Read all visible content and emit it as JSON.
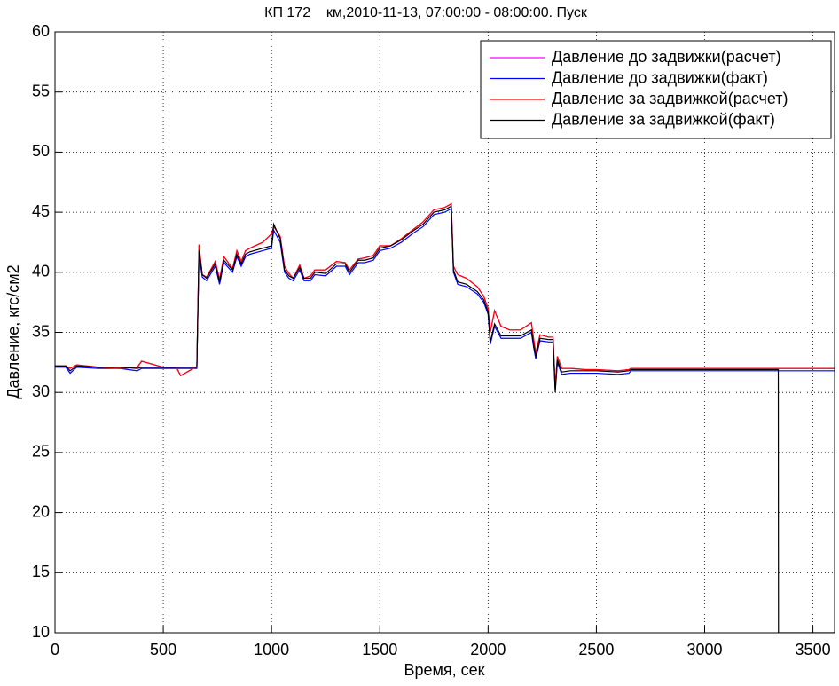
{
  "chart_data": {
    "type": "line",
    "title": "КП 172    км,2010-11-13, 07:00:00 - 08:00:00. Пуск",
    "xlabel": "Время, сек",
    "ylabel": "Давление, кгс/см2",
    "x": [
      0,
      50,
      70,
      100,
      200,
      300,
      380,
      400,
      500,
      560,
      580,
      650,
      655,
      665,
      680,
      700,
      740,
      760,
      780,
      820,
      840,
      860,
      880,
      900,
      960,
      1000,
      1010,
      1040,
      1060,
      1080,
      1100,
      1130,
      1150,
      1180,
      1200,
      1250,
      1300,
      1340,
      1360,
      1400,
      1430,
      1470,
      1500,
      1550,
      1600,
      1650,
      1700,
      1750,
      1800,
      1830,
      1840,
      1860,
      1900,
      1950,
      1980,
      2000,
      2010,
      2030,
      2060,
      2100,
      2150,
      2200,
      2210,
      2220,
      2240,
      2280,
      2300,
      2310,
      2320,
      2340,
      2380,
      2450,
      2500,
      2600,
      2650,
      2660,
      2700,
      2800,
      3000,
      3200,
      3340,
      3341,
      3600
    ],
    "series": [
      {
        "name": "Давление до задвижки(расчет)",
        "color": "#ff00ff",
        "values": [
          32.2,
          32.2,
          32.0,
          32.3,
          32.1,
          32.0,
          32.1,
          32.6,
          32.1,
          32.1,
          31.4,
          32.1,
          32.1,
          42.3,
          39.8,
          39.6,
          40.9,
          39.4,
          41.3,
          40.3,
          41.8,
          40.9,
          41.8,
          42.0,
          42.5,
          43.2,
          43.8,
          43.0,
          40.5,
          39.9,
          39.5,
          40.6,
          39.5,
          39.7,
          40.2,
          40.2,
          40.9,
          40.8,
          40.2,
          41.1,
          41.2,
          41.4,
          42.2,
          42.2,
          42.8,
          43.5,
          44.2,
          45.2,
          45.4,
          45.7,
          40.5,
          39.8,
          39.5,
          38.8,
          38.0,
          37.0,
          35.0,
          36.8,
          35.5,
          35.2,
          35.2,
          35.8,
          34.5,
          33.3,
          34.8,
          34.6,
          34.6,
          30.6,
          33.0,
          32.0,
          32.0,
          31.9,
          31.9,
          31.8,
          31.9,
          32.0,
          32.0,
          32.0,
          32.0,
          32.0,
          32.0,
          32.0,
          32.0
        ]
      },
      {
        "name": "Давление до задвижки(факт)",
        "color": "#0000ff",
        "values": [
          32.1,
          32.1,
          31.6,
          32.1,
          32.0,
          32.0,
          31.8,
          32.0,
          32.0,
          32.0,
          32.0,
          32.0,
          32.0,
          41.5,
          39.6,
          39.3,
          40.5,
          39.0,
          40.8,
          40.0,
          41.3,
          40.5,
          41.3,
          41.5,
          41.8,
          42.0,
          43.5,
          42.5,
          40.0,
          39.5,
          39.3,
          40.2,
          39.3,
          39.3,
          39.8,
          39.7,
          40.5,
          40.5,
          39.8,
          40.8,
          40.8,
          41.0,
          41.8,
          42.0,
          42.5,
          43.2,
          43.8,
          44.8,
          45.0,
          45.3,
          40.0,
          39.0,
          38.8,
          38.2,
          37.5,
          36.5,
          34.0,
          35.5,
          34.5,
          34.5,
          34.5,
          35.0,
          33.8,
          32.8,
          34.3,
          34.2,
          34.2,
          30.2,
          32.5,
          31.5,
          31.6,
          31.6,
          31.6,
          31.5,
          31.6,
          31.8,
          31.8,
          31.8,
          31.8,
          31.8,
          31.8,
          31.8,
          31.8
        ]
      },
      {
        "name": "Давление за задвижкой(расчет)",
        "color": "#ff0000",
        "values": [
          32.2,
          32.2,
          32.0,
          32.3,
          32.1,
          32.0,
          32.1,
          32.6,
          32.1,
          32.1,
          31.4,
          32.1,
          32.1,
          42.3,
          39.8,
          39.6,
          40.9,
          39.4,
          41.3,
          40.3,
          41.8,
          40.9,
          41.8,
          42.0,
          42.5,
          43.2,
          43.8,
          43.0,
          40.5,
          39.9,
          39.5,
          40.6,
          39.5,
          39.7,
          40.2,
          40.2,
          40.9,
          40.8,
          40.2,
          41.1,
          41.2,
          41.4,
          42.2,
          42.2,
          42.8,
          43.5,
          44.2,
          45.2,
          45.4,
          45.7,
          40.5,
          39.8,
          39.5,
          38.8,
          38.0,
          37.0,
          35.0,
          36.8,
          35.5,
          35.2,
          35.2,
          35.8,
          34.5,
          33.3,
          34.8,
          34.6,
          34.6,
          30.6,
          33.0,
          32.0,
          32.0,
          31.9,
          31.9,
          31.8,
          31.9,
          32.0,
          32.0,
          32.0,
          32.0,
          32.0,
          32.0,
          32.0,
          32.0
        ]
      },
      {
        "name": "Давление за задвижкой(факт)",
        "color": "#000000",
        "values": [
          32.2,
          32.2,
          31.8,
          32.2,
          32.1,
          32.1,
          32.0,
          32.1,
          32.1,
          32.1,
          32.1,
          32.1,
          32.1,
          41.8,
          39.8,
          39.5,
          40.7,
          39.2,
          41.0,
          40.2,
          41.5,
          40.7,
          41.5,
          41.7,
          42.0,
          42.2,
          44.0,
          42.8,
          40.2,
          39.7,
          39.5,
          40.4,
          39.5,
          39.5,
          40.0,
          39.9,
          40.7,
          40.7,
          40.0,
          41.0,
          41.0,
          41.2,
          42.0,
          42.2,
          42.7,
          43.4,
          44.0,
          45.0,
          45.2,
          45.5,
          40.2,
          39.2,
          39.0,
          38.4,
          37.7,
          36.7,
          34.2,
          35.7,
          34.7,
          34.7,
          34.7,
          35.2,
          34.0,
          33.0,
          34.5,
          34.4,
          34.4,
          30.0,
          32.7,
          31.7,
          31.8,
          31.8,
          31.8,
          31.7,
          31.8,
          31.9,
          31.9,
          31.9,
          31.9,
          31.9,
          31.9,
          10,
          10
        ]
      }
    ],
    "xlim": [
      0,
      3600
    ],
    "xticks": [
      0,
      500,
      1000,
      1500,
      2000,
      2500,
      3000,
      3500
    ],
    "ylim": [
      10,
      60
    ],
    "yticks": [
      10,
      15,
      20,
      25,
      30,
      35,
      40,
      45,
      50,
      55,
      60
    ],
    "grid": true,
    "legend": "top-right"
  }
}
